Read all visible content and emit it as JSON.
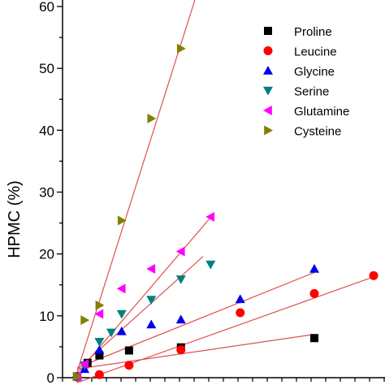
{
  "chart_data": {
    "type": "scatter",
    "title": "",
    "xlabel": "",
    "ylabel": "HPMC (%)",
    "x_range": [
      0,
      21
    ],
    "ylim": [
      0,
      60
    ],
    "y_ticks": [
      "0",
      "10",
      "20",
      "30",
      "40",
      "50",
      "60"
    ],
    "grid": false,
    "legend_position": "top-right",
    "fit_line_color": "#e05050",
    "series": [
      {
        "name": "Proline",
        "marker": "square",
        "color": "#000000",
        "points": [
          [
            0.5,
            0.2
          ],
          [
            1.2,
            2.4
          ],
          [
            2.0,
            3.6
          ],
          [
            4.0,
            4.4
          ],
          [
            7.5,
            4.9
          ],
          [
            16.5,
            6.4
          ]
        ],
        "fit": {
          "x": [
            0.5,
            16.5
          ],
          "y": [
            1.4,
            7.0
          ]
        }
      },
      {
        "name": "Leucine",
        "marker": "circle",
        "color": "#ff0000",
        "points": [
          [
            0.5,
            0.1
          ],
          [
            2.0,
            0.5
          ],
          [
            4.0,
            2.0
          ],
          [
            7.5,
            4.5
          ],
          [
            11.5,
            10.5
          ],
          [
            16.5,
            13.6
          ],
          [
            20.5,
            16.5
          ]
        ],
        "fit": {
          "x": [
            0.5,
            20.5
          ],
          "y": [
            -0.8,
            16.3
          ]
        }
      },
      {
        "name": "Glycine",
        "marker": "triangle-up",
        "color": "#0000ee",
        "points": [
          [
            0.5,
            0.2
          ],
          [
            1.0,
            1.4
          ],
          [
            2.0,
            4.5
          ],
          [
            3.5,
            7.5
          ],
          [
            5.5,
            8.6
          ],
          [
            7.5,
            9.4
          ],
          [
            11.5,
            12.7
          ],
          [
            16.5,
            17.6
          ]
        ],
        "fit": {
          "x": [
            0.5,
            16.5
          ],
          "y": [
            1.6,
            17.0
          ]
        }
      },
      {
        "name": "Serine",
        "marker": "triangle-down",
        "color": "#008080",
        "points": [
          [
            0.5,
            0.1
          ],
          [
            1.0,
            2.0
          ],
          [
            2.0,
            5.8
          ],
          [
            2.8,
            7.3
          ],
          [
            3.5,
            10.3
          ],
          [
            5.5,
            12.6
          ],
          [
            7.5,
            15.9
          ],
          [
            9.5,
            18.3
          ]
        ],
        "fit": {
          "x": [
            0.5,
            9.0
          ],
          "y": [
            1.3,
            19.6
          ]
        }
      },
      {
        "name": "Glutamine",
        "marker": "triangle-left",
        "color": "#ff00ff",
        "points": [
          [
            0.5,
            0.2
          ],
          [
            1.0,
            2.2
          ],
          [
            2.0,
            10.3
          ],
          [
            3.5,
            14.4
          ],
          [
            5.5,
            17.6
          ],
          [
            7.5,
            20.4
          ],
          [
            9.5,
            26.0
          ]
        ],
        "fit": {
          "x": [
            0.5,
            9.5
          ],
          "y": [
            0.7,
            25.9
          ]
        }
      },
      {
        "name": "Cysteine",
        "marker": "triangle-right",
        "color": "#808000",
        "points": [
          [
            0.5,
            0.2
          ],
          [
            1.0,
            9.3
          ],
          [
            2.0,
            11.7
          ],
          [
            3.5,
            25.4
          ],
          [
            5.5,
            41.9
          ],
          [
            7.5,
            53.2
          ]
        ],
        "fit": {
          "x": [
            0.5,
            8.5
          ],
          "y": [
            1.0,
            61.5
          ]
        }
      }
    ]
  }
}
